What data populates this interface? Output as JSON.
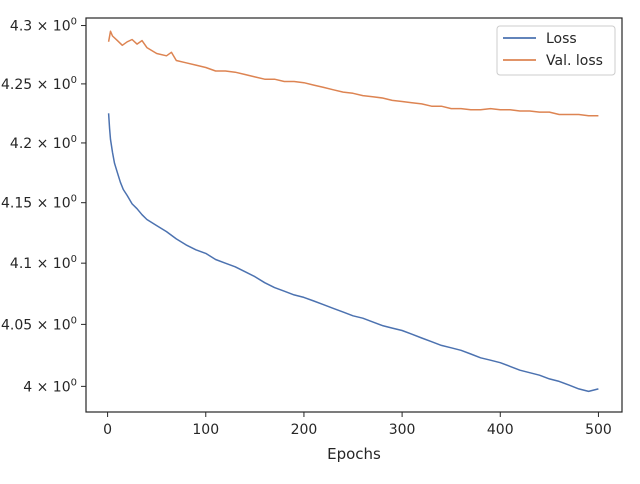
{
  "chart_data": {
    "type": "line",
    "title": "",
    "xlabel": "Epochs",
    "ylabel": "",
    "xlim": [
      -22,
      524
    ],
    "ylim": [
      3.9795,
      4.3065
    ],
    "yscale": "log",
    "grid": false,
    "legend_position": "top-right",
    "xticks": [
      0,
      100,
      200,
      300,
      400,
      500
    ],
    "xtick_labels": [
      "0",
      "100",
      "200",
      "300",
      "400",
      "500"
    ],
    "yticks": [
      4.0,
      4.05,
      4.1,
      4.15,
      4.2,
      4.25,
      4.3
    ],
    "ytick_mantissas": [
      "4",
      "4.05",
      "4.1",
      "4.15",
      "4.2",
      "4.25",
      "4.3"
    ],
    "ytick_suffix": "× 10",
    "ytick_exponent": "0",
    "series": [
      {
        "name": "Loss",
        "color": "#4c72b0",
        "x": [
          1,
          2,
          3,
          5,
          7,
          10,
          13,
          16,
          20,
          25,
          30,
          35,
          40,
          50,
          60,
          70,
          80,
          90,
          100,
          110,
          120,
          130,
          140,
          150,
          160,
          170,
          180,
          190,
          200,
          210,
          220,
          230,
          240,
          250,
          260,
          270,
          280,
          290,
          300,
          310,
          320,
          330,
          340,
          350,
          360,
          370,
          380,
          390,
          400,
          410,
          420,
          430,
          440,
          450,
          460,
          470,
          480,
          490,
          500
        ],
        "values": [
          4.225,
          4.212,
          4.203,
          4.192,
          4.183,
          4.175,
          4.167,
          4.161,
          4.156,
          4.149,
          4.145,
          4.14,
          4.136,
          4.131,
          4.126,
          4.12,
          4.115,
          4.111,
          4.108,
          4.103,
          4.1,
          4.097,
          4.093,
          4.089,
          4.084,
          4.08,
          4.077,
          4.074,
          4.072,
          4.069,
          4.066,
          4.063,
          4.06,
          4.057,
          4.055,
          4.052,
          4.049,
          4.047,
          4.045,
          4.042,
          4.039,
          4.036,
          4.033,
          4.031,
          4.029,
          4.026,
          4.023,
          4.021,
          4.019,
          4.016,
          4.013,
          4.011,
          4.009,
          4.006,
          4.004,
          4.001,
          3.998,
          3.996,
          3.998
        ]
      },
      {
        "name": "Val. loss",
        "color": "#dd8452",
        "x": [
          1,
          3,
          5,
          10,
          15,
          20,
          25,
          30,
          35,
          40,
          50,
          60,
          65,
          70,
          80,
          90,
          100,
          110,
          120,
          130,
          140,
          150,
          160,
          170,
          180,
          190,
          200,
          210,
          220,
          230,
          240,
          250,
          260,
          270,
          280,
          290,
          300,
          310,
          320,
          330,
          340,
          350,
          360,
          370,
          380,
          390,
          400,
          410,
          420,
          430,
          440,
          450,
          460,
          470,
          480,
          490,
          500
        ],
        "values": [
          4.286,
          4.295,
          4.291,
          4.287,
          4.283,
          4.286,
          4.288,
          4.284,
          4.287,
          4.281,
          4.276,
          4.274,
          4.277,
          4.27,
          4.268,
          4.266,
          4.264,
          4.261,
          4.261,
          4.26,
          4.258,
          4.256,
          4.254,
          4.254,
          4.252,
          4.252,
          4.251,
          4.249,
          4.247,
          4.245,
          4.243,
          4.242,
          4.24,
          4.239,
          4.238,
          4.236,
          4.235,
          4.234,
          4.233,
          4.231,
          4.231,
          4.229,
          4.229,
          4.228,
          4.228,
          4.229,
          4.228,
          4.228,
          4.227,
          4.227,
          4.226,
          4.226,
          4.224,
          4.224,
          4.224,
          4.223,
          4.223
        ]
      }
    ]
  }
}
